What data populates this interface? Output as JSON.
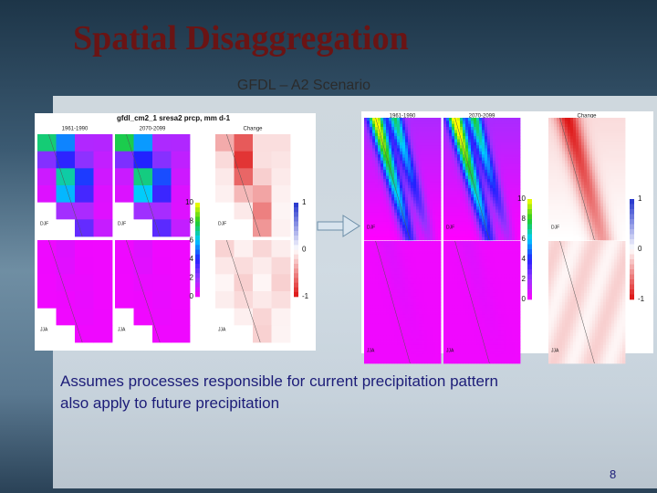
{
  "title": "Spatial Disaggregation",
  "subtitle": "GFDL – A2 Scenario",
  "body_lines": [
    "Assumes processes responsible for current precipitation pattern",
    "also apply to future precipitation"
  ],
  "page_number": "8",
  "left_figure": {
    "heading": "gfdl_cm2_1 sresa2 prcp, mm d-1",
    "columns": [
      "1961-1990",
      "2070-2099",
      "Change"
    ],
    "seasons": [
      "DJF",
      "JJA"
    ],
    "colorbar_ticks": [
      "10",
      "8",
      "6",
      "4",
      "2",
      "0"
    ],
    "change_ticks": [
      "1",
      "0",
      "-1"
    ]
  },
  "right_figure": {
    "columns": [
      "1961-1990",
      "2070-2099",
      "Change"
    ],
    "seasons": [
      "DJF",
      "JJA"
    ],
    "colorbar_ticks": [
      "10",
      "8",
      "6",
      "4",
      "2",
      "0"
    ],
    "change_ticks": [
      "1",
      "0",
      "-1"
    ]
  }
}
